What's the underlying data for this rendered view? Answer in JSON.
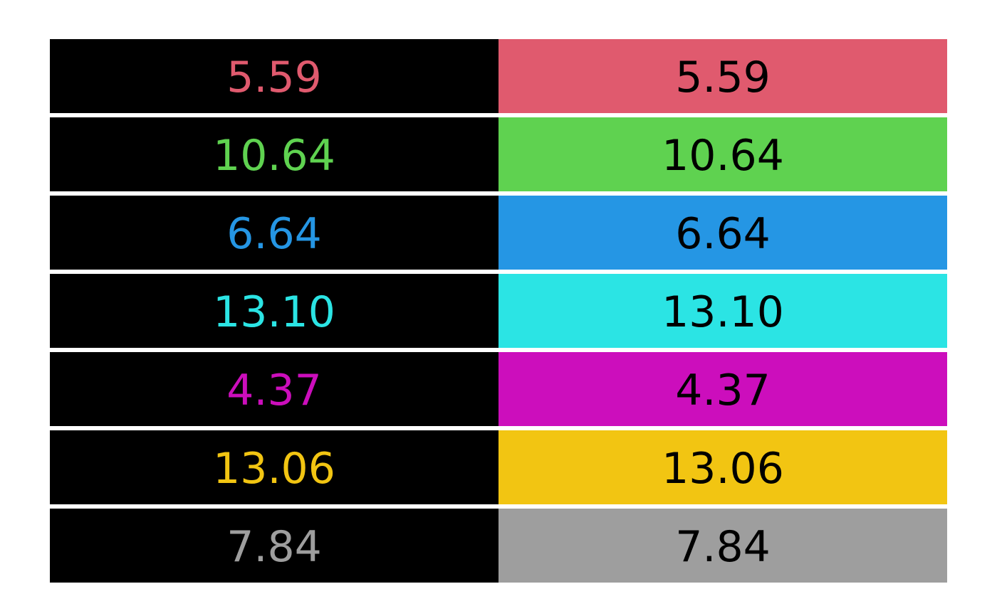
{
  "chart_data": {
    "type": "table",
    "columns": [
      "value",
      "value"
    ],
    "rows": [
      {
        "value": "5.59",
        "color": "#e05a6e"
      },
      {
        "value": "10.64",
        "color": "#5fd250"
      },
      {
        "value": "6.64",
        "color": "#2596e4"
      },
      {
        "value": "13.10",
        "color": "#2be4e4"
      },
      {
        "value": "4.37",
        "color": "#cc0ebc"
      },
      {
        "value": "13.06",
        "color": "#f2c512"
      },
      {
        "value": "7.84",
        "color": "#9e9e9e"
      }
    ],
    "left_background": "#000000",
    "right_text_color": "#000000"
  }
}
